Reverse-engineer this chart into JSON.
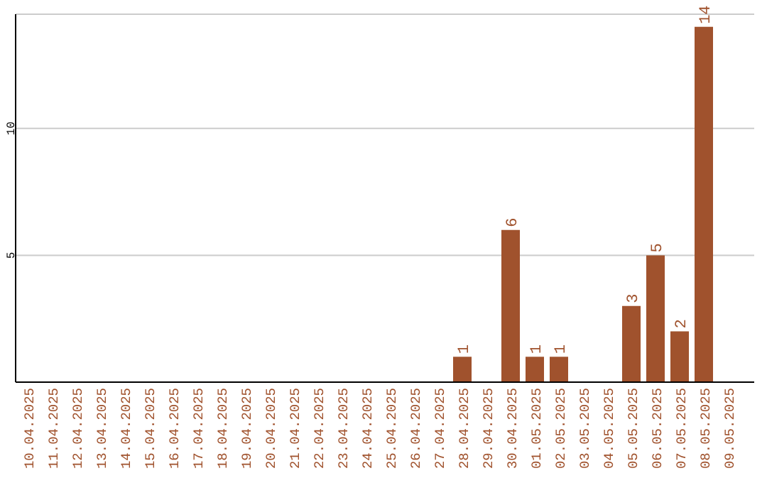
{
  "chart_data": {
    "type": "bar",
    "categories": [
      "10.04.2025",
      "11.04.2025",
      "12.04.2025",
      "13.04.2025",
      "14.04.2025",
      "15.04.2025",
      "16.04.2025",
      "17.04.2025",
      "18.04.2025",
      "19.04.2025",
      "20.04.2025",
      "21.04.2025",
      "22.04.2025",
      "23.04.2025",
      "24.04.2025",
      "25.04.2025",
      "26.04.2025",
      "27.04.2025",
      "28.04.2025",
      "29.04.2025",
      "30.04.2025",
      "01.05.2025",
      "02.05.2025",
      "03.05.2025",
      "04.05.2025",
      "05.05.2025",
      "06.05.2025",
      "07.05.2025",
      "08.05.2025",
      "09.05.2025"
    ],
    "values": [
      0,
      0,
      0,
      0,
      0,
      0,
      0,
      0,
      0,
      0,
      0,
      0,
      0,
      0,
      0,
      0,
      0,
      0,
      1,
      0,
      6,
      1,
      1,
      0,
      0,
      3,
      5,
      2,
      14,
      0
    ],
    "value_labels": [
      null,
      null,
      null,
      null,
      null,
      null,
      null,
      null,
      null,
      null,
      null,
      null,
      null,
      null,
      null,
      null,
      null,
      null,
      "1",
      null,
      "6",
      "1",
      "1",
      null,
      null,
      "3",
      "5",
      "2",
      "14",
      null
    ],
    "color": "#a0522d",
    "ylim": [
      0,
      14.5
    ],
    "yticks": [
      5,
      10
    ],
    "grid": "y"
  }
}
